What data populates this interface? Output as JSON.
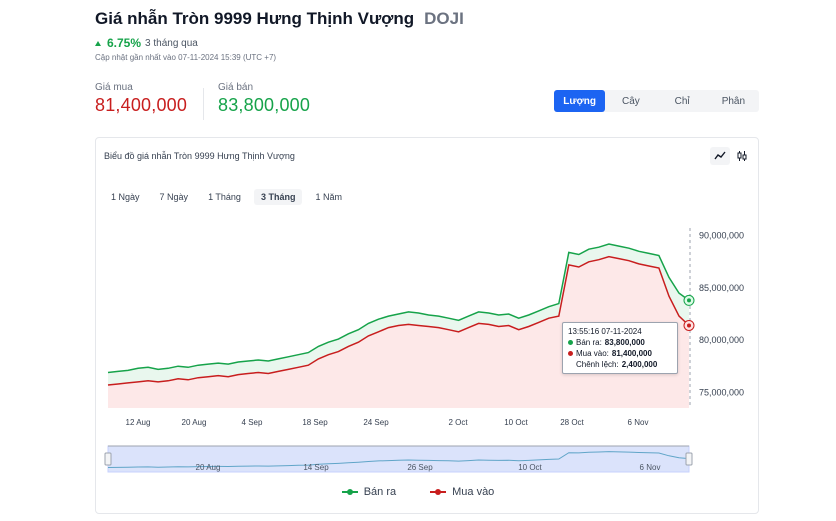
{
  "header": {
    "title": "Giá nhẫn Tròn 9999 Hưng Thịnh Vượng",
    "brand": "DOJI",
    "change": "6.75%",
    "change_period": "3 tháng qua",
    "updated": "Cập nhật gần nhất vào 07-11-2024 15:39 (UTC +7)"
  },
  "prices": {
    "buy_label": "Giá mua",
    "buy_value": "81,400,000",
    "sell_label": "Giá bán",
    "sell_value": "83,800,000"
  },
  "unit_tabs": [
    "Lượng",
    "Cây",
    "Chỉ",
    "Phân"
  ],
  "unit_selected": 0,
  "chart_card": {
    "title": "Biểu đồ giá nhẫn Tròn 9999 Hưng Thịnh Vượng",
    "ranges": [
      "1 Ngày",
      "7 Ngày",
      "1 Tháng",
      "3 Tháng",
      "1 Năm"
    ],
    "range_selected": 3
  },
  "tooltip": {
    "time": "13:55:16 07-11-2024",
    "sell_label": "Bán ra:",
    "sell_value": "83,800,000",
    "buy_label": "Mua vào:",
    "buy_value": "81,400,000",
    "diff_label": "Chênh lệch:",
    "diff_value": "2,400,000"
  },
  "colors": {
    "sell": "#16a34a",
    "buy": "#c81e1e",
    "accent": "#1c64f2"
  },
  "chart_data": {
    "type": "area",
    "x_ticks": [
      "12 Aug",
      "20 Aug",
      "4 Sep",
      "18 Sep",
      "24 Sep",
      "2 Oct",
      "10 Oct",
      "28 Oct",
      "6 Nov"
    ],
    "y_ticks": [
      "90,000,000",
      "85,000,000",
      "80,000,000",
      "75,000,000"
    ],
    "ylim": [
      73500000,
      91500000
    ],
    "navigator_ticks": [
      "20 Aug",
      "14 Sep",
      "26 Sep",
      "10 Oct",
      "6 Nov"
    ],
    "series": [
      {
        "name": "Bán ra",
        "values": [
          76900000,
          77000000,
          77100000,
          77300000,
          77400000,
          77200000,
          77300000,
          77500000,
          77400000,
          77600000,
          77700000,
          77800000,
          77700000,
          77900000,
          78000000,
          78100000,
          78000000,
          78200000,
          78400000,
          78600000,
          78800000,
          79400000,
          79800000,
          80100000,
          80600000,
          81000000,
          81600000,
          82000000,
          82300000,
          82500000,
          82700000,
          82600000,
          82400000,
          82300000,
          82100000,
          81900000,
          82300000,
          82700000,
          82600000,
          82400000,
          82500000,
          82100000,
          82400000,
          82800000,
          83200000,
          83500000,
          88400000,
          88200000,
          88700000,
          88900000,
          89200000,
          89000000,
          88800000,
          88500000,
          88300000,
          88100000,
          86000000,
          84500000,
          83800000
        ]
      },
      {
        "name": "Mua vào",
        "values": [
          75700000,
          75800000,
          75900000,
          76000000,
          76100000,
          76000000,
          76100000,
          76300000,
          76200000,
          76400000,
          76500000,
          76600000,
          76500000,
          76700000,
          76800000,
          76900000,
          76800000,
          77000000,
          77200000,
          77400000,
          77600000,
          78200000,
          78600000,
          78900000,
          79400000,
          79800000,
          80400000,
          80800000,
          81200000,
          81400000,
          81500000,
          81400000,
          81300000,
          81200000,
          81000000,
          80800000,
          81200000,
          81600000,
          81500000,
          81300000,
          81400000,
          81000000,
          81300000,
          81700000,
          82100000,
          82300000,
          87200000,
          87000000,
          87500000,
          87700000,
          88000000,
          87800000,
          87600000,
          87300000,
          87100000,
          86900000,
          84200000,
          82300000,
          81400000
        ]
      }
    ]
  }
}
